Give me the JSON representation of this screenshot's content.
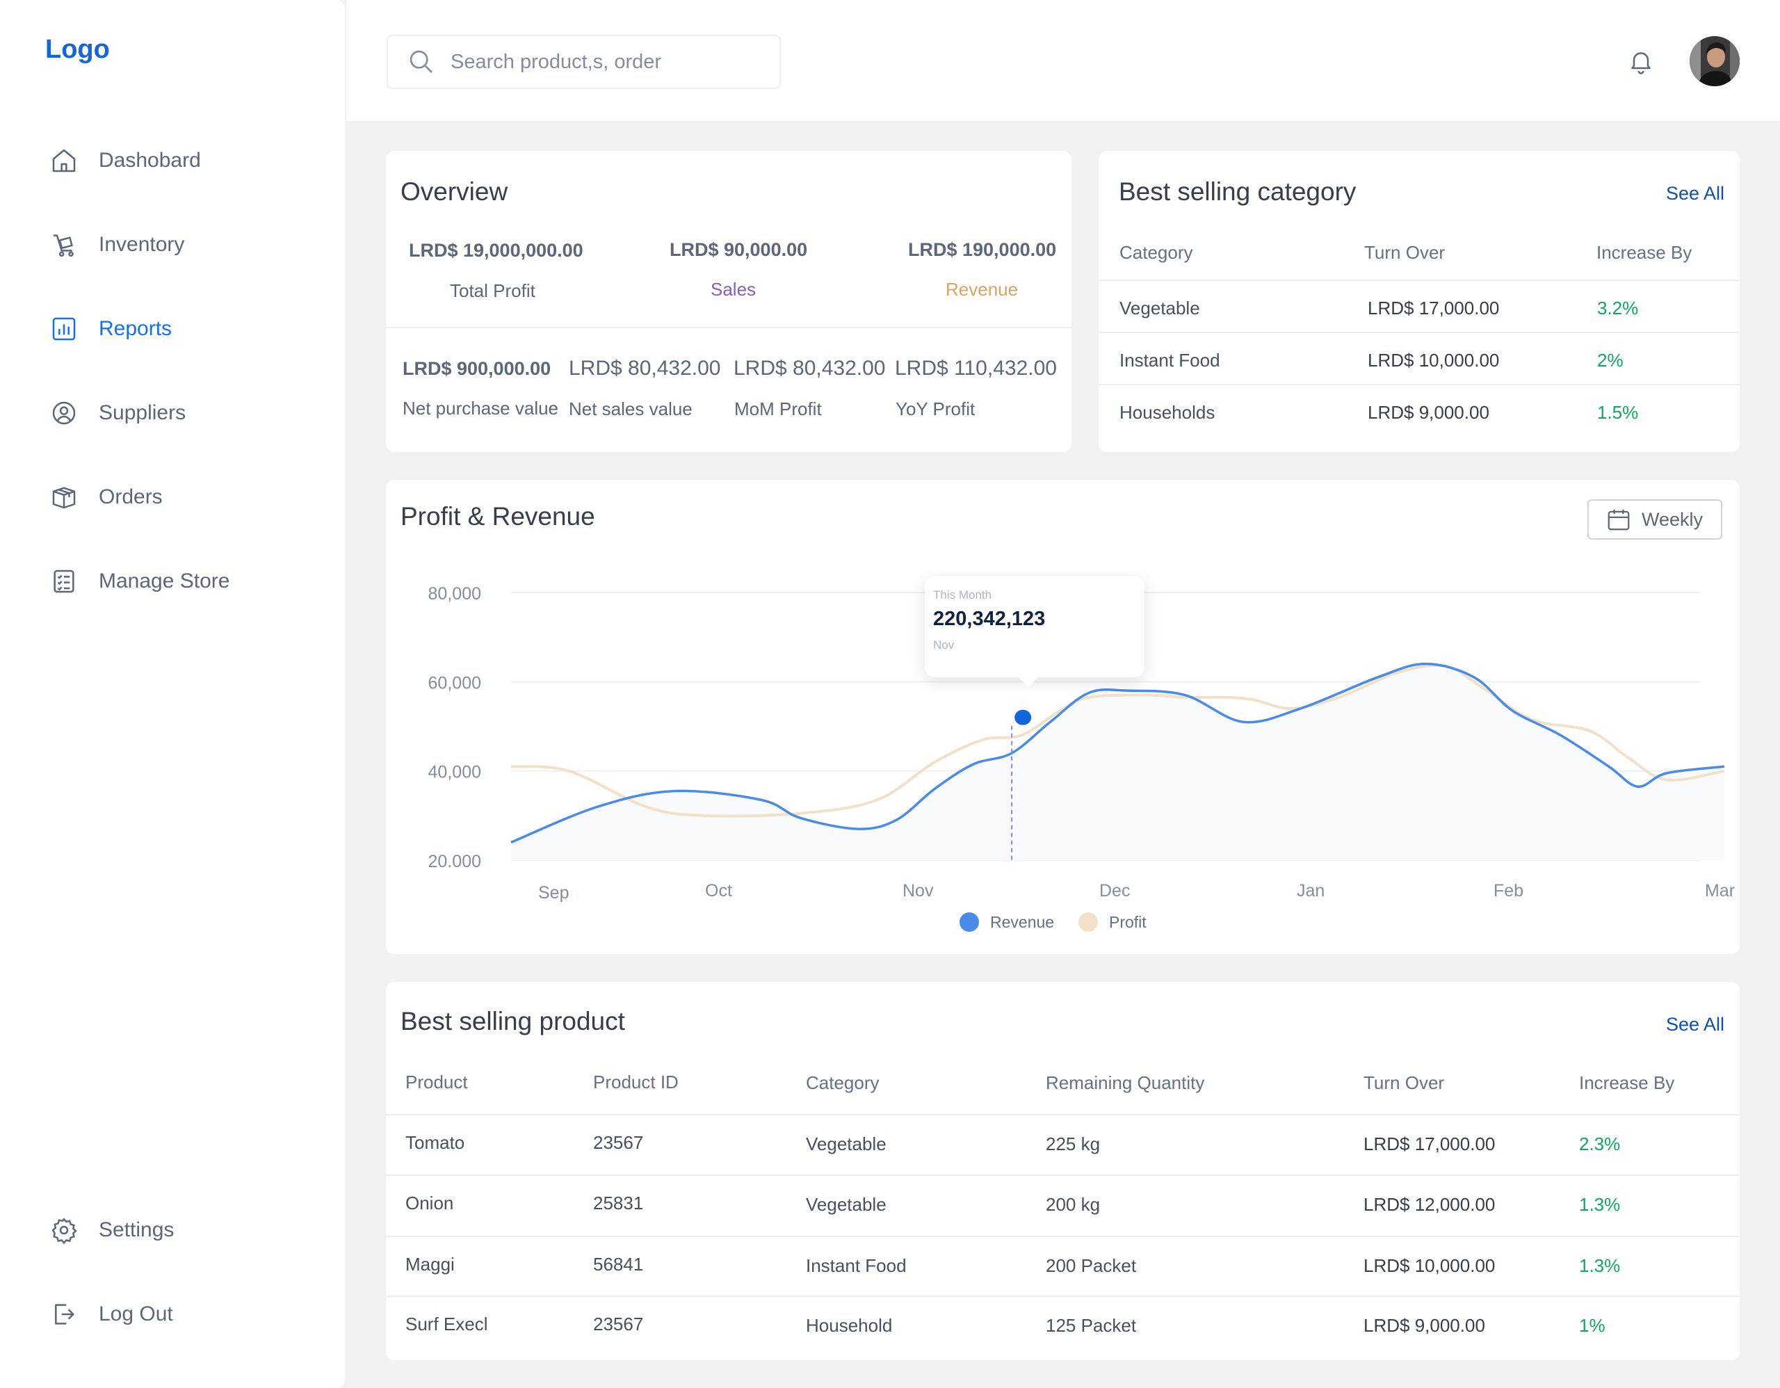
{
  "sidebar": {
    "logo": "Logo",
    "items": [
      {
        "label": "Dashobard",
        "icon": "home-icon"
      },
      {
        "label": "Inventory",
        "icon": "trolley-icon"
      },
      {
        "label": "Reports",
        "icon": "bar-chart-icon"
      },
      {
        "label": "Suppliers",
        "icon": "user-circle-icon"
      },
      {
        "label": "Orders",
        "icon": "box-icon"
      },
      {
        "label": "Manage Store",
        "icon": "checklist-icon"
      }
    ],
    "footer_items": [
      {
        "label": "Settings",
        "icon": "gear-icon"
      },
      {
        "label": "Log Out",
        "icon": "logout-icon"
      }
    ],
    "active_color": "#1570ef"
  },
  "header": {
    "search_placeholder": "Search product,s, order"
  },
  "overview": {
    "title": "Overview",
    "stats": [
      {
        "value": "LRD$ 19,000,000.00",
        "label": "Total Profit",
        "label_color": "#5d6679"
      },
      {
        "value": "LRD$ 90,000.00",
        "label": "Sales",
        "label_color": "#845ebc"
      },
      {
        "value": "LRD$ 190,000.00",
        "label": "Revenue",
        "label_color": "#dba362"
      }
    ],
    "stats2": [
      {
        "value": "LRD$ 900,000.00",
        "label": "Net purchase value"
      },
      {
        "value": "LRD$ 80,432.00",
        "label": "Net sales value"
      },
      {
        "value": "LRD$ 80,432.00",
        "label": "MoM Profit"
      },
      {
        "value": "LRD$ 110,432.00",
        "label": "YoY Profit"
      }
    ]
  },
  "best_category": {
    "title": "Best selling category",
    "see_all": "See All",
    "headers": [
      "Category",
      "Turn Over",
      "Increase By"
    ],
    "rows": [
      [
        "Vegetable",
        "LRD$ 17,000.00",
        "3.2%"
      ],
      [
        "Instant Food",
        "LRD$ 10,000.00",
        "2%"
      ],
      [
        "Households",
        "LRD$ 9,000.00",
        "1.5%"
      ]
    ]
  },
  "chart_panel": {
    "title": "Profit  & Revenue",
    "button_label": "Weekly",
    "tooltip": {
      "label": "This Month",
      "value": "220,342,123",
      "sub": "Nov"
    }
  },
  "chart_data": {
    "type": "line",
    "categories": [
      "Sep",
      "Oct",
      "Nov",
      "Dec",
      "Jan",
      "Feb",
      "Mar"
    ],
    "ylim": [
      20000,
      80000
    ],
    "yticks": [
      "80,000",
      "60,000",
      "40,000",
      "20.000"
    ],
    "ytick_values": [
      80000,
      60000,
      40000,
      20000
    ],
    "series": [
      {
        "name": "Revenue",
        "color": "#4a8ae8",
        "points": [
          [
            0,
            24000
          ],
          [
            0.45,
            32000
          ],
          [
            0.85,
            35500
          ],
          [
            1.3,
            33500
          ],
          [
            1.5,
            29500
          ],
          [
            1.8,
            27000
          ],
          [
            2.0,
            29000
          ],
          [
            2.2,
            36000
          ],
          [
            2.4,
            41500
          ],
          [
            2.6,
            44000
          ],
          [
            2.8,
            51000
          ],
          [
            3.0,
            57500
          ],
          [
            3.2,
            58000
          ],
          [
            3.5,
            57000
          ],
          [
            3.8,
            51000
          ],
          [
            4.1,
            54000
          ],
          [
            4.5,
            61000
          ],
          [
            4.75,
            64000
          ],
          [
            5.0,
            61000
          ],
          [
            5.2,
            53500
          ],
          [
            5.45,
            48000
          ],
          [
            5.7,
            41000
          ],
          [
            5.85,
            36500
          ],
          [
            6.0,
            39500
          ],
          [
            6.3,
            41000
          ]
        ]
      },
      {
        "name": "Profit",
        "color": "#f2e1c9",
        "points": [
          [
            0,
            41000
          ],
          [
            0.3,
            40000
          ],
          [
            0.7,
            32000
          ],
          [
            1.0,
            30000
          ],
          [
            1.5,
            30500
          ],
          [
            1.9,
            33500
          ],
          [
            2.2,
            42000
          ],
          [
            2.45,
            47000
          ],
          [
            2.65,
            48000
          ],
          [
            2.85,
            53500
          ],
          [
            3.0,
            56500
          ],
          [
            3.3,
            57000
          ],
          [
            3.5,
            56500
          ],
          [
            3.7,
            56500
          ],
          [
            3.85,
            56000
          ],
          [
            4.05,
            54000
          ],
          [
            4.3,
            56500
          ],
          [
            4.6,
            62000
          ],
          [
            4.85,
            63500
          ],
          [
            5.05,
            58500
          ],
          [
            5.3,
            51500
          ],
          [
            5.6,
            49000
          ],
          [
            5.8,
            43000
          ],
          [
            6.0,
            38000
          ],
          [
            6.3,
            40000
          ]
        ]
      }
    ],
    "highlight": {
      "x": 2.6,
      "y": 52000,
      "color": "#1366d9"
    },
    "legend_placement": "bottom-center",
    "grid": true
  },
  "best_product": {
    "title": "Best selling product",
    "see_all": "See All",
    "headers": [
      "Product",
      "Product ID",
      "Category",
      "Remaining Quantity",
      "Turn Over",
      "Increase By"
    ],
    "rows": [
      [
        "Tomato",
        "23567",
        "Vegetable",
        "225 kg",
        "LRD$ 17,000.00",
        "2.3%"
      ],
      [
        "Onion",
        "25831",
        "Vegetable",
        "200 kg",
        "LRD$ 12,000.00",
        "1.3%"
      ],
      [
        "Maggi",
        "56841",
        "Instant Food",
        "200 Packet",
        "LRD$ 10,000.00",
        "1.3%"
      ],
      [
        "Surf Execl",
        "23567",
        "Household",
        "125 Packet",
        "LRD$ 9,000.00",
        "1%"
      ]
    ]
  }
}
